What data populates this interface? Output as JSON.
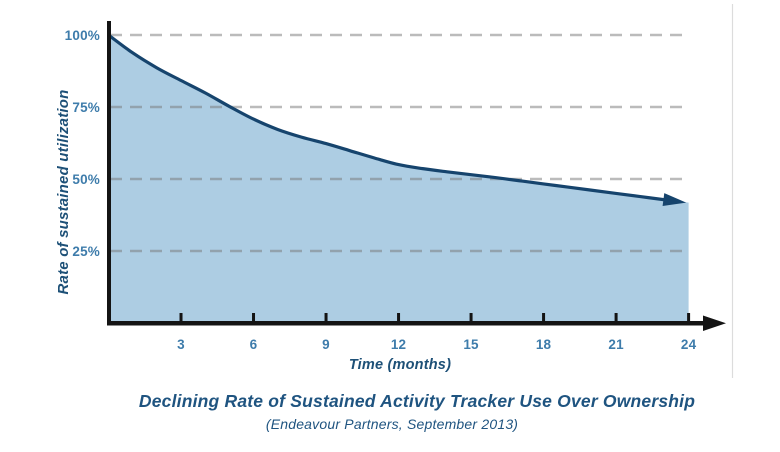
{
  "figure": {
    "title": "Declining Rate of Sustained Activity Tracker Use Over Ownership",
    "subtitle": "(Endeavour Partners, September 2013)"
  },
  "chart_data": {
    "type": "area",
    "title": "Declining Rate of Sustained Activity Tracker Use Over Ownership",
    "subtitle": "(Endeavour Partners, September 2013)",
    "xlabel": "Time (months)",
    "ylabel": "Rate of sustained utilization",
    "xlim": [
      0,
      24
    ],
    "ylim": [
      0,
      100
    ],
    "x_tick_values": [
      3,
      6,
      9,
      12,
      15,
      18,
      21,
      24
    ],
    "x_tick_labels": [
      "3",
      "6",
      "9",
      "12",
      "15",
      "18",
      "21",
      "24"
    ],
    "y_tick_values": [
      100,
      75,
      50,
      25
    ],
    "y_tick_labels": [
      "100%",
      "75%",
      "50%",
      "25%"
    ],
    "grid": "horizontal-dashed",
    "legend": "none",
    "series": [
      {
        "name": "Rate of sustained utilization",
        "x": [
          0,
          1,
          2,
          3,
          4,
          5,
          6,
          7,
          8,
          9,
          10,
          11,
          12,
          13,
          14,
          15,
          16,
          17,
          18,
          19,
          20,
          21,
          22,
          23,
          24
        ],
        "y": [
          100,
          93.8,
          88.6,
          84.2,
          79.9,
          75.2,
          70.8,
          67.2,
          64.5,
          62.3,
          59.8,
          57.3,
          55.0,
          53.6,
          52.5,
          51.5,
          50.5,
          49.4,
          48.3,
          47.2,
          46.1,
          45.0,
          43.9,
          42.8,
          41.8
        ],
        "end_arrow": true
      }
    ]
  },
  "colors": {
    "line": "#16446d",
    "area_fill": "#adcde3",
    "grid": "#787878",
    "axis": "#141414",
    "tick_label": "#3e7cab",
    "axis_title": "#1d5077",
    "figure_title": "#1f5480",
    "divider": "#dcdcdc"
  }
}
